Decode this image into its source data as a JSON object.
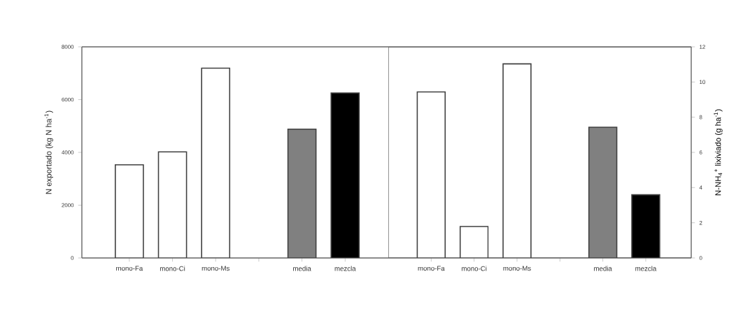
{
  "chart_data": [
    {
      "type": "bar",
      "ylabel": "N exportado (kg N ha$^{-1}$)",
      "categories": [
        "mono-Fa",
        "mono-Ci",
        "mono-Ms",
        null,
        "media",
        "mezcla"
      ],
      "values": [
        3530,
        4020,
        7190,
        null,
        4880,
        6250
      ],
      "colors": [
        "#ffffff",
        "#ffffff",
        "#ffffff",
        null,
        "#808080",
        "#000000"
      ],
      "ylim": [
        0,
        8000
      ],
      "yticks": [
        0,
        2000,
        4000,
        6000,
        8000
      ]
    },
    {
      "type": "bar",
      "ylabel": "N-NH$_{4}$$^{+}$ lixiviado (g ha$^{-1}$)",
      "categories": [
        "mono-Fa",
        "mono-Ci",
        "mono-Ms",
        null,
        "media",
        "mezcla"
      ],
      "values": [
        9.44,
        1.79,
        11.03,
        null,
        7.43,
        3.59
      ],
      "colors": [
        "#ffffff",
        "#ffffff",
        "#ffffff",
        null,
        "#808080",
        "#000000"
      ],
      "ylim": [
        0,
        12
      ],
      "yticks": [
        0,
        2,
        4,
        6,
        8,
        10,
        12
      ]
    }
  ]
}
